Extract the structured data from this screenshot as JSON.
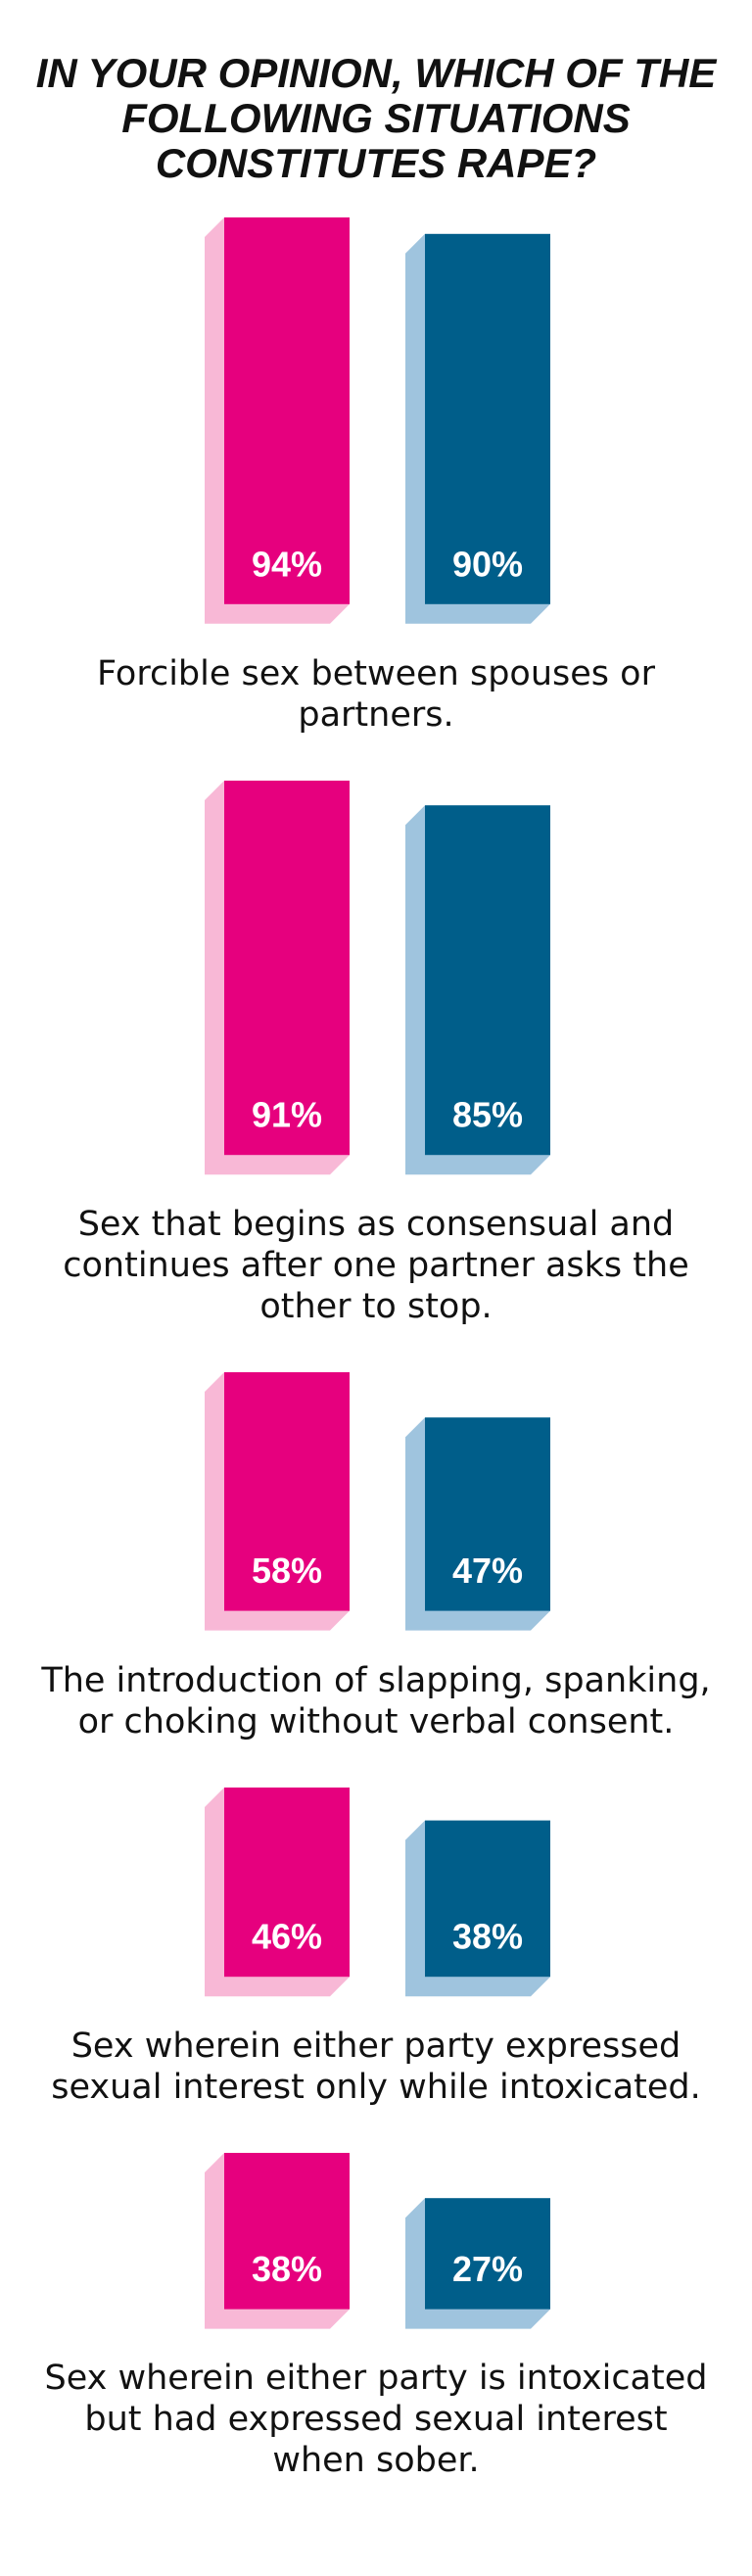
{
  "chart_data": {
    "type": "bar",
    "title": "IN YOUR OPINION, WHICH OF THE FOLLOWING SITUATIONS CONSTITUTES RAPE?",
    "categories": [
      "Forcible sex between spouses or partners.",
      "Sex that begins as consensual and continues after one partner asks the other to stop.",
      "The introduction of slapping, spanking, or choking without verbal consent.",
      "Sex wherein either party expressed sexual interest only while intoxicated.",
      "Sex wherein either party is intoxicated but had expressed sexual interest when sober."
    ],
    "series": [
      {
        "color": "#e6007e",
        "shadow_color": "#f8b8d6",
        "values": [
          94,
          91,
          58,
          46,
          38
        ],
        "value_labels": [
          "94%",
          "91%",
          "58%",
          "46%",
          "38%"
        ]
      },
      {
        "color": "#005e8a",
        "shadow_color": "#9fc4de",
        "values": [
          90,
          85,
          47,
          38,
          27
        ],
        "value_labels": [
          "90%",
          "85%",
          "47%",
          "38%",
          "27%"
        ]
      }
    ]
  }
}
